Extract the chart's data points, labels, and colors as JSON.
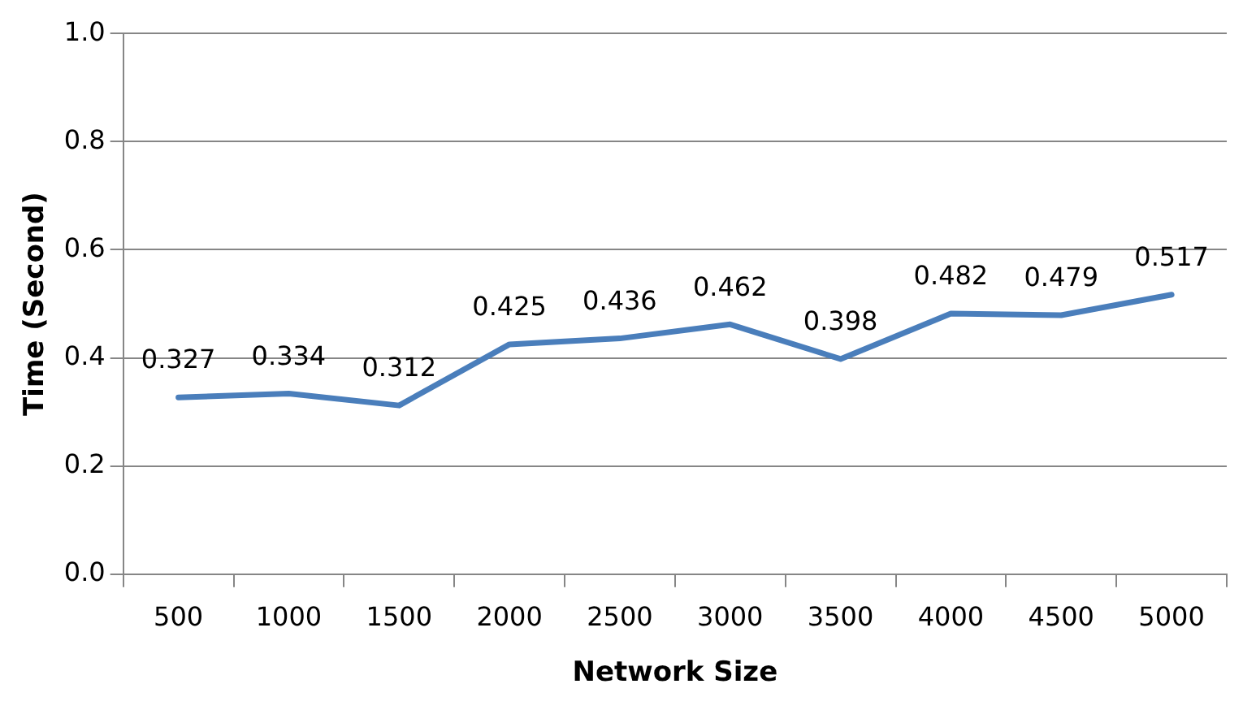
{
  "chart_data": {
    "type": "line",
    "xlabel": "Network Size",
    "ylabel": "Time (Second)",
    "categories": [
      "500",
      "1000",
      "1500",
      "2000",
      "2500",
      "3000",
      "3500",
      "4000",
      "4500",
      "5000"
    ],
    "series": [
      {
        "color": "#4a7ebb",
        "values": [
          0.327,
          0.334,
          0.312,
          0.425,
          0.436,
          0.462,
          0.398,
          0.482,
          0.479,
          0.517
        ]
      }
    ],
    "ylim": [
      0,
      1
    ],
    "yticks": [
      {
        "value": 0,
        "label": "0.0"
      },
      {
        "value": 0.2,
        "label": "0.2"
      },
      {
        "value": 0.4,
        "label": "0.4"
      },
      {
        "value": 0.6,
        "label": "0.6"
      },
      {
        "value": 0.8,
        "label": "0.8"
      },
      {
        "value": 1,
        "label": "1.0"
      }
    ],
    "grid": "y",
    "legend": false,
    "marker": "none",
    "line_style": "solid",
    "data_labels": true
  }
}
